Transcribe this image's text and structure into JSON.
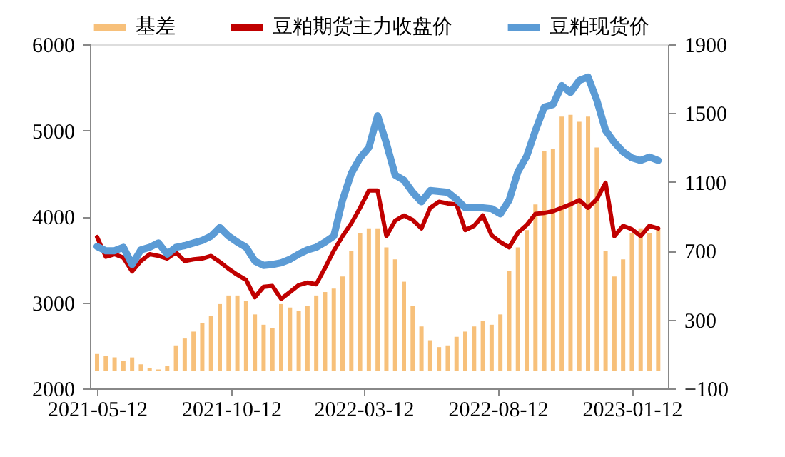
{
  "chart_data": {
    "type": "line",
    "legend": "top",
    "grid": false,
    "marker": "none",
    "line_style": "solid",
    "x": [
      "2021-05-12",
      "2021-05-22",
      "2021-06-01",
      "2021-06-11",
      "2021-06-21",
      "2021-07-01",
      "2021-07-11",
      "2021-07-21",
      "2021-07-31",
      "2021-08-10",
      "2021-08-20",
      "2021-08-30",
      "2021-09-09",
      "2021-09-19",
      "2021-09-29",
      "2021-10-09",
      "2021-10-19",
      "2021-10-29",
      "2021-11-08",
      "2021-11-18",
      "2021-11-28",
      "2021-12-08",
      "2021-12-18",
      "2021-12-28",
      "2022-01-07",
      "2022-01-17",
      "2022-01-27",
      "2022-02-06",
      "2022-02-16",
      "2022-02-26",
      "2022-03-08",
      "2022-03-18",
      "2022-03-28",
      "2022-04-07",
      "2022-04-17",
      "2022-04-27",
      "2022-05-07",
      "2022-05-17",
      "2022-05-27",
      "2022-06-06",
      "2022-06-16",
      "2022-06-26",
      "2022-07-06",
      "2022-07-16",
      "2022-07-26",
      "2022-08-05",
      "2022-08-15",
      "2022-08-25",
      "2022-09-04",
      "2022-09-14",
      "2022-09-24",
      "2022-10-04",
      "2022-10-14",
      "2022-10-24",
      "2022-11-03",
      "2022-11-13",
      "2022-11-23",
      "2022-12-03",
      "2022-12-13",
      "2022-12-23",
      "2023-01-02",
      "2023-01-12",
      "2023-01-22",
      "2023-02-01",
      "2023-02-11"
    ],
    "xlim": [
      "2021-05-12",
      "2023-02-14"
    ],
    "xticks": [
      "2021-05-12",
      "2021-10-12",
      "2022-03-12",
      "2022-08-12",
      "2023-01-12"
    ],
    "ylim": [
      2000,
      6000
    ],
    "yticks": [
      2000,
      3000,
      4000,
      5000,
      6000
    ],
    "y2lim": [
      -100,
      1900
    ],
    "y2ticks": [
      -100,
      300,
      700,
      1100,
      1500,
      1900
    ],
    "series": [
      {
        "name": "基差",
        "type": "bar",
        "axis": "y2",
        "color": "#f7c07a",
        "values": [
          100,
          90,
          80,
          60,
          80,
          40,
          20,
          10,
          30,
          150,
          190,
          230,
          280,
          320,
          390,
          440,
          440,
          410,
          330,
          270,
          250,
          390,
          370,
          350,
          380,
          440,
          460,
          480,
          550,
          700,
          800,
          830,
          830,
          720,
          650,
          520,
          380,
          260,
          180,
          140,
          150,
          200,
          230,
          260,
          290,
          270,
          330,
          580,
          720,
          820,
          970,
          1280,
          1290,
          1480,
          1490,
          1450,
          1480,
          1300,
          700,
          550,
          650,
          800,
          830,
          800,
          830
        ]
      },
      {
        "name": "豆粕期货主力收盘价",
        "color": "#c00000",
        "values": [
          3760,
          3530,
          3560,
          3520,
          3360,
          3480,
          3560,
          3540,
          3510,
          3580,
          3480,
          3500,
          3510,
          3540,
          3470,
          3390,
          3320,
          3260,
          3060,
          3180,
          3190,
          3040,
          3120,
          3200,
          3230,
          3210,
          3400,
          3600,
          3770,
          3920,
          4100,
          4300,
          4300,
          3770,
          3950,
          4010,
          3960,
          3860,
          4100,
          4170,
          4150,
          4140,
          3840,
          3890,
          4010,
          3780,
          3700,
          3640,
          3810,
          3900,
          4030,
          4040,
          4060,
          4100,
          4140,
          4190,
          4100,
          4200,
          4390,
          3770,
          3890,
          3850,
          3770,
          3890,
          3860
        ]
      },
      {
        "name": "豆粕现货价",
        "color": "#5b9bd5",
        "values": [
          3650,
          3600,
          3600,
          3640,
          3440,
          3610,
          3640,
          3690,
          3560,
          3640,
          3660,
          3690,
          3720,
          3770,
          3870,
          3770,
          3700,
          3640,
          3480,
          3430,
          3440,
          3460,
          3500,
          3560,
          3610,
          3640,
          3700,
          3770,
          4190,
          4500,
          4680,
          4800,
          5170,
          4850,
          4480,
          4420,
          4280,
          4170,
          4300,
          4290,
          4280,
          4200,
          4100,
          4100,
          4100,
          4090,
          4030,
          4190,
          4520,
          4700,
          5000,
          5270,
          5300,
          5520,
          5440,
          5580,
          5620,
          5350,
          5000,
          4860,
          4750,
          4680,
          4650,
          4690,
          4650
        ]
      }
    ]
  }
}
